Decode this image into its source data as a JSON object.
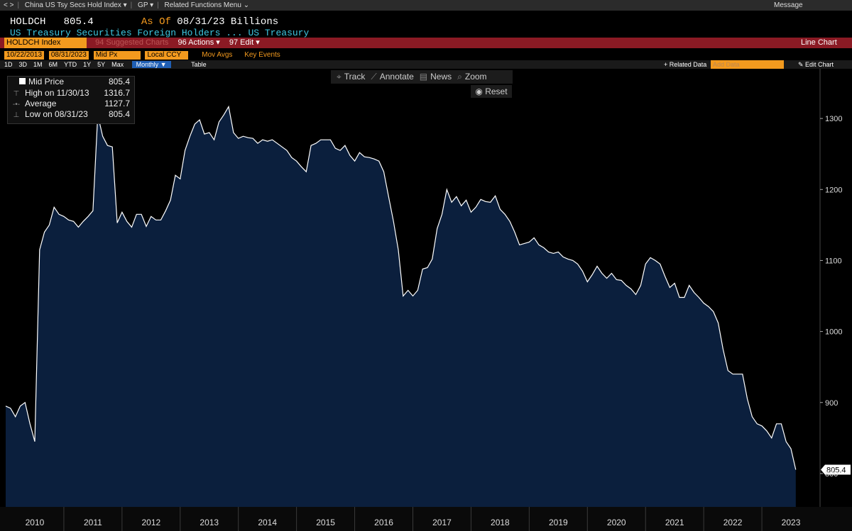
{
  "menu_bar": {
    "nav": "< >",
    "items": [
      "China US Tsy Secs Hold Index ▾",
      "GP ▾",
      "Related Functions Menu ⌄"
    ],
    "message": "Message"
  },
  "header": {
    "ticker": "HOLDCH",
    "last": "805.4",
    "as_of_label": "As Of",
    "as_of": "08/31/23",
    "units": "Billions",
    "description": "US Treasury Securities Foreign Holders ...",
    "source": "US Treasury"
  },
  "command_bar": {
    "security": "HOLDCH Index",
    "buttons": [
      "94 Suggested Charts",
      "96 Actions ▾",
      "97 Edit ▾"
    ],
    "chart_type": "Line Chart"
  },
  "settings": {
    "start": "10/22/2013",
    "end": "08/31/2023",
    "field": "Mid Px",
    "currency": "Local CCY",
    "options": [
      "Mov Avgs",
      "Key Events"
    ]
  },
  "periods": [
    "1D",
    "3D",
    "1M",
    "6M",
    "YTD",
    "1Y",
    "5Y",
    "Max"
  ],
  "frequency": "Monthly ▼",
  "table": "Table",
  "right_actions": {
    "related": "+ Related Data",
    "add": "Add Data",
    "edit": "✎ Edit Chart"
  },
  "chart_tools": {
    "items": [
      "Track",
      "Annotate",
      "News",
      "Zoom"
    ],
    "reset": "Reset"
  },
  "legend": {
    "rows": [
      {
        "label": "High on 11/30/13",
        "value": "1316.7"
      },
      {
        "label": "Average",
        "value": "1127.7"
      },
      {
        "label": "Low on 08/31/23",
        "value": "805.4"
      }
    ],
    "last": "805.4"
  },
  "chart_data": {
    "type": "line",
    "x": [
      2010,
      2010.083,
      2010.167,
      2010.25,
      2010.333,
      2010.417,
      2010.5,
      2010.583,
      2010.667,
      2010.75,
      2010.833,
      2010.917,
      2011,
      2011.083,
      2011.167,
      2011.25,
      2011.333,
      2011.417,
      2011.5,
      2011.583,
      2011.667,
      2011.75,
      2011.833,
      2011.917,
      2012,
      2012.083,
      2012.167,
      2012.25,
      2012.333,
      2012.417,
      2012.5,
      2012.583,
      2012.667,
      2012.75,
      2012.833,
      2012.917,
      2013,
      2013.083,
      2013.167,
      2013.25,
      2013.333,
      2013.417,
      2013.5,
      2013.583,
      2013.667,
      2013.75,
      2013.833,
      2013.917,
      2014,
      2014.083,
      2014.167,
      2014.25,
      2014.333,
      2014.417,
      2014.5,
      2014.583,
      2014.667,
      2014.75,
      2014.833,
      2014.917,
      2015,
      2015.083,
      2015.167,
      2015.25,
      2015.333,
      2015.417,
      2015.5,
      2015.583,
      2015.667,
      2015.75,
      2015.833,
      2015.917,
      2016,
      2016.083,
      2016.167,
      2016.25,
      2016.333,
      2016.417,
      2016.5,
      2016.583,
      2016.667,
      2016.75,
      2016.833,
      2016.917,
      2017,
      2017.083,
      2017.167,
      2017.25,
      2017.333,
      2017.417,
      2017.5,
      2017.583,
      2017.667,
      2017.75,
      2017.833,
      2017.917,
      2018,
      2018.083,
      2018.167,
      2018.25,
      2018.333,
      2018.417,
      2018.5,
      2018.583,
      2018.667,
      2018.75,
      2018.833,
      2018.917,
      2019,
      2019.083,
      2019.167,
      2019.25,
      2019.333,
      2019.417,
      2019.5,
      2019.583,
      2019.667,
      2019.75,
      2019.833,
      2019.917,
      2020,
      2020.083,
      2020.167,
      2020.25,
      2020.333,
      2020.417,
      2020.5,
      2020.583,
      2020.667,
      2020.75,
      2020.833,
      2020.917,
      2021,
      2021.083,
      2021.167,
      2021.25,
      2021.333,
      2021.417,
      2021.5,
      2021.583,
      2021.667,
      2021.75,
      2021.833,
      2021.917,
      2022,
      2022.083,
      2022.167,
      2022.25,
      2022.333,
      2022.417,
      2022.5,
      2022.583,
      2022.667,
      2022.75,
      2022.833,
      2022.917,
      2023,
      2023.083,
      2023.167,
      2023.25,
      2023.333,
      2023.417,
      2023.5,
      2023.583
    ],
    "series": [
      {
        "name": "Mid Price",
        "color": "#ffffff",
        "fill": "#0b1f3d",
        "values": [
          895,
          892,
          880,
          895,
          900,
          870,
          845,
          1115,
          1140,
          1150,
          1175,
          1165,
          1162,
          1157,
          1155,
          1147,
          1155,
          1162,
          1170,
          1305,
          1275,
          1262,
          1260,
          1153,
          1168,
          1155,
          1147,
          1165,
          1165,
          1148,
          1162,
          1157,
          1157,
          1170,
          1185,
          1220,
          1215,
          1255,
          1275,
          1292,
          1298,
          1278,
          1280,
          1270,
          1295,
          1305,
          1316.7,
          1280,
          1272,
          1275,
          1273,
          1272,
          1265,
          1270,
          1268,
          1270,
          1265,
          1260,
          1255,
          1245,
          1240,
          1232,
          1225,
          1262,
          1265,
          1270,
          1270,
          1270,
          1258,
          1255,
          1262,
          1248,
          1240,
          1252,
          1246,
          1245,
          1243,
          1240,
          1225,
          1190,
          1155,
          1115,
          1050,
          1058,
          1050,
          1058,
          1088,
          1090,
          1102,
          1145,
          1165,
          1200,
          1182,
          1190,
          1177,
          1185,
          1168,
          1175,
          1186,
          1183,
          1182,
          1191,
          1172,
          1165,
          1155,
          1140,
          1122,
          1124,
          1126,
          1132,
          1122,
          1118,
          1112,
          1110,
          1112,
          1105,
          1102,
          1100,
          1095,
          1085,
          1070,
          1080,
          1092,
          1082,
          1075,
          1082,
          1073,
          1072,
          1065,
          1060,
          1052,
          1065,
          1095,
          1104,
          1100,
          1095,
          1078,
          1062,
          1068,
          1048,
          1048,
          1065,
          1055,
          1048,
          1040,
          1035,
          1028,
          1012,
          975,
          945,
          940,
          940,
          940,
          905,
          880,
          870,
          867,
          860,
          850,
          870,
          870,
          845,
          835,
          805.4
        ]
      }
    ],
    "xlim": [
      2010,
      2024
    ],
    "xticks": [
      {
        "value": 2010,
        "label": "2010"
      },
      {
        "value": 2011,
        "label": "2011"
      },
      {
        "value": 2012,
        "label": "2012"
      },
      {
        "value": 2013,
        "label": "2013"
      },
      {
        "value": 2014,
        "label": "2014"
      },
      {
        "value": 2015,
        "label": "2015"
      },
      {
        "value": 2016,
        "label": "2016"
      },
      {
        "value": 2017,
        "label": "2017"
      },
      {
        "value": 2018,
        "label": "2018"
      },
      {
        "value": 2019,
        "label": "2019"
      },
      {
        "value": 2020,
        "label": "2020"
      },
      {
        "value": 2021,
        "label": "2021"
      },
      {
        "value": 2022,
        "label": "2022"
      },
      {
        "value": 2023,
        "label": "2023"
      }
    ],
    "ylim": [
      753,
      1370
    ],
    "yticks": [
      800,
      900,
      1000,
      1100,
      1200,
      1300
    ]
  }
}
